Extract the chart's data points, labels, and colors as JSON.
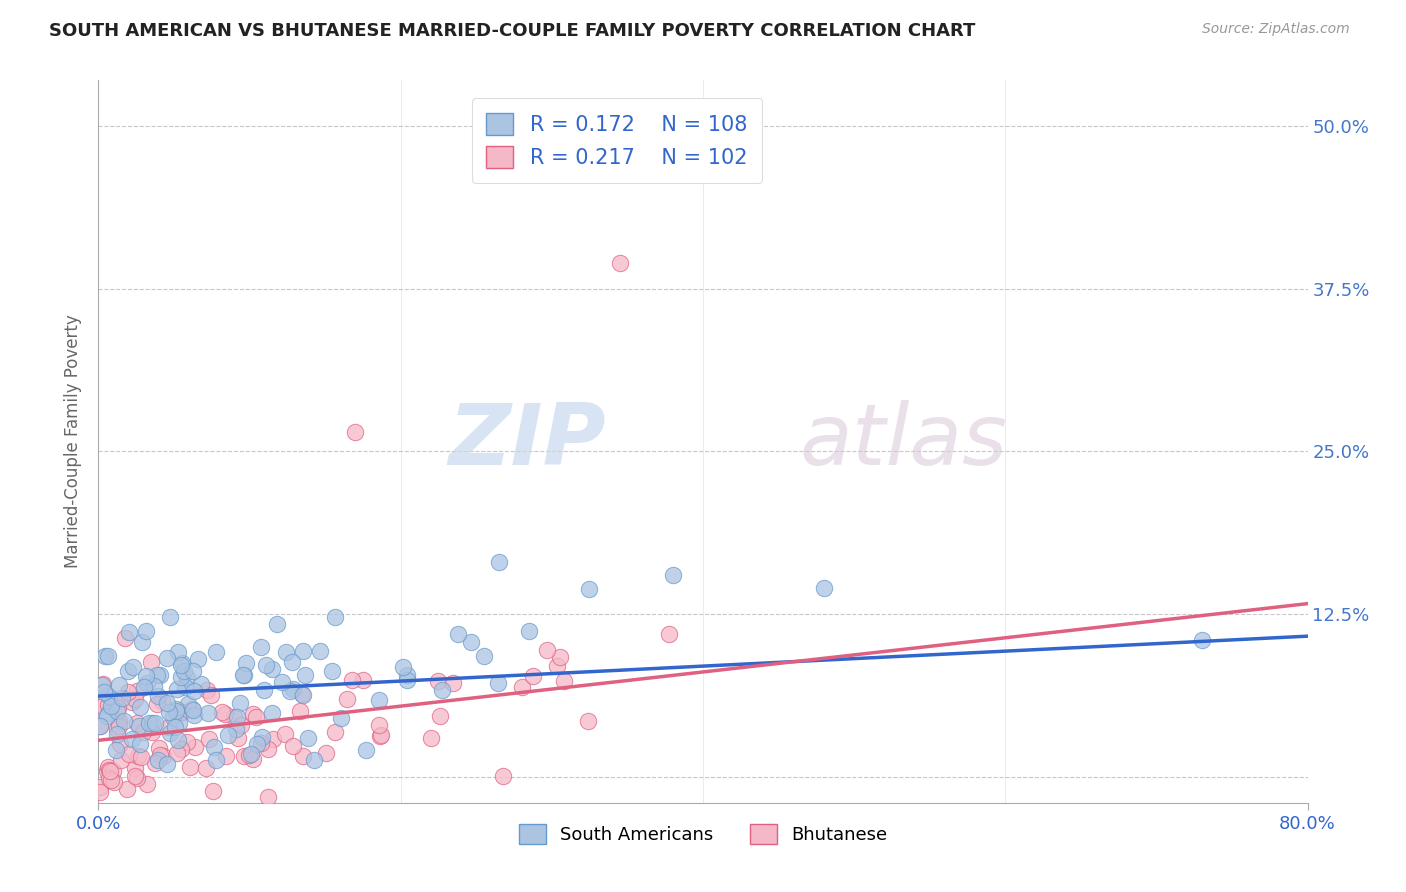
{
  "title": "SOUTH AMERICAN VS BHUTANESE MARRIED-COUPLE FAMILY POVERTY CORRELATION CHART",
  "source": "Source: ZipAtlas.com",
  "ylabel": "Married-Couple Family Poverty",
  "xlim": [
    0.0,
    0.8
  ],
  "ylim": [
    -0.02,
    0.535
  ],
  "ytick_vals": [
    0.0,
    0.125,
    0.25,
    0.375,
    0.5
  ],
  "ytick_labels": [
    "",
    "12.5%",
    "25.0%",
    "37.5%",
    "50.0%"
  ],
  "grid_color": "#c8c8c8",
  "background_color": "#ffffff",
  "watermark_zip": "ZIP",
  "watermark_atlas": "atlas",
  "sa_color": "#aac4e2",
  "sa_edge_color": "#6699cc",
  "bh_color": "#f5b8c8",
  "bh_edge_color": "#e06080",
  "sa_line_color": "#3366cc",
  "bh_line_color": "#e06080",
  "sa_R": 0.172,
  "sa_N": 108,
  "bh_R": 0.217,
  "bh_N": 102,
  "legend_labels": [
    "South Americans",
    "Bhutanese"
  ],
  "title_color": "#222222",
  "axis_label_color": "#666666",
  "tick_label_color_right": "#4477cc",
  "sa_line_y0": 0.062,
  "sa_line_y1": 0.108,
  "bh_line_y0": 0.028,
  "bh_line_y1": 0.133
}
